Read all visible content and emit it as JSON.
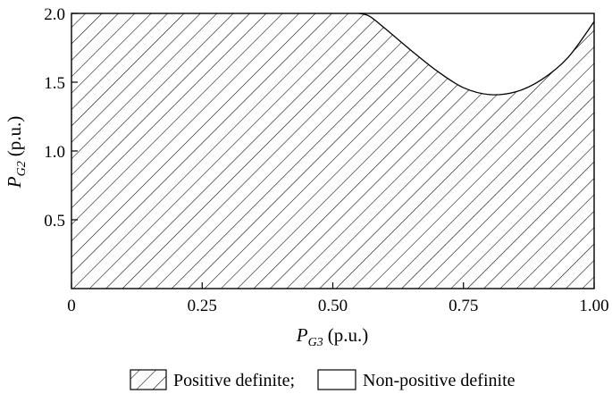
{
  "chart_data": {
    "type": "area",
    "xlabel": {
      "symbol": "P",
      "subscript": "G3",
      "unit": "(p.u.)"
    },
    "ylabel": {
      "symbol": "P",
      "subscript": "G2",
      "unit": "(p.u.)"
    },
    "xlim": [
      0,
      1.0
    ],
    "ylim": [
      0,
      2.0
    ],
    "xticks": [
      {
        "value": 0,
        "label": "0"
      },
      {
        "value": 0.25,
        "label": "0.25"
      },
      {
        "value": 0.5,
        "label": "0.50"
      },
      {
        "value": 0.75,
        "label": "0.75"
      },
      {
        "value": 1.0,
        "label": "1.00"
      }
    ],
    "yticks": [
      {
        "value": 0.5,
        "label": "0.5"
      },
      {
        "value": 1.0,
        "label": "1.0"
      },
      {
        "value": 1.5,
        "label": "1.5"
      },
      {
        "value": 2.0,
        "label": "2.0"
      }
    ],
    "grid": false,
    "boundary": {
      "name": "Positive definite",
      "x": [
        0.55,
        0.57,
        0.6,
        0.65,
        0.7,
        0.75,
        0.8,
        0.85,
        0.9,
        0.95,
        1.0
      ],
      "y": [
        2.0,
        1.98,
        1.89,
        1.73,
        1.58,
        1.46,
        1.41,
        1.43,
        1.52,
        1.68,
        1.94
      ]
    },
    "regions": [
      {
        "name": "Positive definite",
        "fill": "hatched"
      },
      {
        "name": "Non-positive definite",
        "fill": "blank"
      }
    ],
    "legend": {
      "position": "bottom",
      "items": [
        {
          "label": "Positive definite;",
          "fill": "hatched"
        },
        {
          "label": "Non-positive definite",
          "fill": "blank"
        }
      ]
    }
  }
}
